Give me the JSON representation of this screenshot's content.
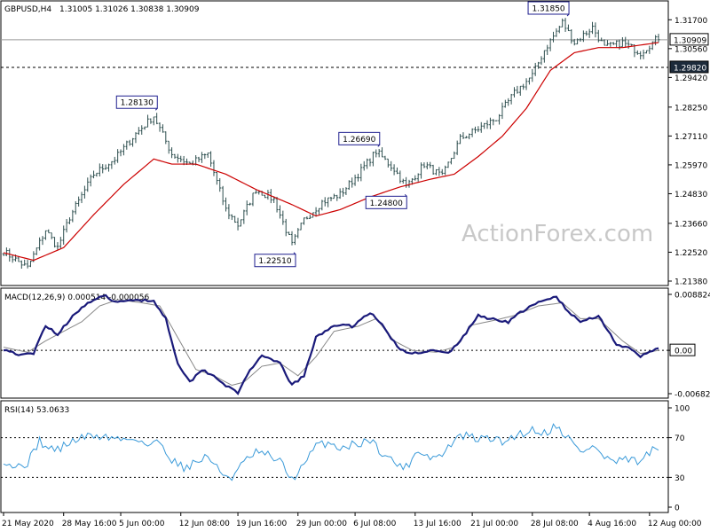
{
  "colors": {
    "background": "#ffffff",
    "candles": "#2e4f4f",
    "ma": "#cc0000",
    "macd_line": "#1a1a7a",
    "macd_signal": "#888888",
    "rsi": "#3a9ad9",
    "grid_dash": "#000000"
  },
  "header": {
    "symbol": "GBPUSD,H4",
    "ohlc": "1.31005 1.31026 1.30838 1.30909"
  },
  "watermark": "ActionForex.com",
  "chart_data": [
    {
      "type": "candlestick",
      "panel": "price",
      "ylim": [
        1.2138,
        1.3171
      ],
      "yticks": [
        "1.31700",
        "1.30560",
        "1.29420",
        "1.28250",
        "1.27110",
        "1.25970",
        "1.24830",
        "1.23660",
        "1.22520",
        "1.21380"
      ],
      "current_price_label": "1.30909",
      "current_price": 1.30909,
      "support_label": "1.29820",
      "support_level": 1.2982,
      "annotations": [
        {
          "text": "1.28130",
          "index": 50,
          "price": 1.2813
        },
        {
          "text": "1.22510",
          "index": 96,
          "price": 1.2251
        },
        {
          "text": "1.26690",
          "index": 124,
          "price": 1.2669
        },
        {
          "text": "1.24800",
          "index": 133,
          "price": 1.248
        },
        {
          "text": "1.31850",
          "index": 187,
          "price": 1.3185
        }
      ],
      "anchors": [
        [
          0,
          1.2255
        ],
        [
          8,
          1.219
        ],
        [
          14,
          1.234
        ],
        [
          18,
          1.227
        ],
        [
          22,
          1.239
        ],
        [
          30,
          1.256
        ],
        [
          37,
          1.262
        ],
        [
          44,
          1.272
        ],
        [
          50,
          1.279
        ],
        [
          56,
          1.264
        ],
        [
          62,
          1.26
        ],
        [
          68,
          1.264
        ],
        [
          74,
          1.242
        ],
        [
          78,
          1.236
        ],
        [
          84,
          1.25
        ],
        [
          90,
          1.246
        ],
        [
          96,
          1.228
        ],
        [
          100,
          1.238
        ],
        [
          106,
          1.245
        ],
        [
          112,
          1.248
        ],
        [
          118,
          1.256
        ],
        [
          124,
          1.265
        ],
        [
          130,
          1.258
        ],
        [
          134,
          1.251
        ],
        [
          140,
          1.26
        ],
        [
          146,
          1.255
        ],
        [
          152,
          1.27
        ],
        [
          158,
          1.274
        ],
        [
          164,
          1.278
        ],
        [
          170,
          1.288
        ],
        [
          176,
          1.295
        ],
        [
          180,
          1.305
        ],
        [
          186,
          1.316
        ],
        [
          190,
          1.308
        ],
        [
          196,
          1.314
        ],
        [
          200,
          1.306
        ],
        [
          206,
          1.308
        ],
        [
          212,
          1.304
        ],
        [
          218,
          1.31
        ]
      ],
      "ma_anchors": [
        [
          0,
          1.225
        ],
        [
          10,
          1.222
        ],
        [
          20,
          1.227
        ],
        [
          30,
          1.24
        ],
        [
          40,
          1.252
        ],
        [
          50,
          1.262
        ],
        [
          56,
          1.26
        ],
        [
          64,
          1.26
        ],
        [
          74,
          1.256
        ],
        [
          84,
          1.25
        ],
        [
          96,
          1.244
        ],
        [
          104,
          1.2395
        ],
        [
          112,
          1.242
        ],
        [
          122,
          1.247
        ],
        [
          132,
          1.251
        ],
        [
          142,
          1.254
        ],
        [
          150,
          1.256
        ],
        [
          158,
          1.263
        ],
        [
          166,
          1.271
        ],
        [
          174,
          1.282
        ],
        [
          182,
          1.297
        ],
        [
          190,
          1.304
        ],
        [
          198,
          1.306
        ],
        [
          206,
          1.306
        ],
        [
          212,
          1.307
        ],
        [
          218,
          1.308
        ]
      ],
      "bars": 219
    },
    {
      "type": "line",
      "panel": "macd",
      "title": "MACD(12,26,9) 0.000514 -0.000056",
      "ylim": [
        -0.006825,
        0.008824
      ],
      "yticks": [
        "0.008824",
        "0.00",
        "-0.006825"
      ],
      "current_label": "0.00",
      "series": [
        {
          "name": "MACD",
          "anchors": [
            [
              0,
              0.0002
            ],
            [
              6,
              -0.0008
            ],
            [
              10,
              -0.0005
            ],
            [
              14,
              0.004
            ],
            [
              18,
              0.0025
            ],
            [
              24,
              0.006
            ],
            [
              30,
              0.008
            ],
            [
              34,
              0.0085
            ],
            [
              38,
              0.0075
            ],
            [
              44,
              0.008
            ],
            [
              50,
              0.0078
            ],
            [
              54,
              0.005
            ],
            [
              58,
              -0.002
            ],
            [
              62,
              -0.005
            ],
            [
              66,
              -0.003
            ],
            [
              70,
              -0.004
            ],
            [
              74,
              -0.0055
            ],
            [
              78,
              -0.0068
            ],
            [
              82,
              -0.003
            ],
            [
              86,
              -0.001
            ],
            [
              92,
              -0.002
            ],
            [
              96,
              -0.0055
            ],
            [
              100,
              -0.004
            ],
            [
              104,
              0.002
            ],
            [
              110,
              0.004
            ],
            [
              116,
              0.0038
            ],
            [
              122,
              0.006
            ],
            [
              126,
              0.004
            ],
            [
              132,
              0.0
            ],
            [
              136,
              -0.0005
            ],
            [
              142,
              0.0
            ],
            [
              148,
              -0.0005
            ],
            [
              152,
              0.0015
            ],
            [
              158,
              0.0055
            ],
            [
              162,
              0.005
            ],
            [
              168,
              0.0045
            ],
            [
              172,
              0.006
            ],
            [
              178,
              0.0075
            ],
            [
              184,
              0.0085
            ],
            [
              188,
              0.006
            ],
            [
              192,
              0.0045
            ],
            [
              198,
              0.0055
            ],
            [
              204,
              0.001
            ],
            [
              208,
              0.0003
            ],
            [
              212,
              -0.001
            ],
            [
              218,
              0.0005
            ]
          ]
        },
        {
          "name": "Signal",
          "anchors": [
            [
              0,
              0.0005
            ],
            [
              8,
              -0.0003
            ],
            [
              14,
              0.0015
            ],
            [
              20,
              0.003
            ],
            [
              26,
              0.0045
            ],
            [
              32,
              0.007
            ],
            [
              38,
              0.008
            ],
            [
              46,
              0.0075
            ],
            [
              52,
              0.007
            ],
            [
              58,
              0.002
            ],
            [
              64,
              -0.003
            ],
            [
              70,
              -0.004
            ],
            [
              76,
              -0.0055
            ],
            [
              80,
              -0.005
            ],
            [
              86,
              -0.0025
            ],
            [
              92,
              -0.002
            ],
            [
              98,
              -0.004
            ],
            [
              104,
              -0.001
            ],
            [
              110,
              0.003
            ],
            [
              118,
              0.0038
            ],
            [
              124,
              0.005
            ],
            [
              130,
              0.0015
            ],
            [
              136,
              0.0
            ],
            [
              144,
              -0.0003
            ],
            [
              150,
              0.0005
            ],
            [
              156,
              0.004
            ],
            [
              164,
              0.0048
            ],
            [
              170,
              0.0055
            ],
            [
              178,
              0.007
            ],
            [
              186,
              0.0075
            ],
            [
              192,
              0.005
            ],
            [
              198,
              0.005
            ],
            [
              206,
              0.0015
            ],
            [
              212,
              -0.0005
            ],
            [
              218,
              0.0
            ]
          ]
        }
      ]
    },
    {
      "type": "line",
      "panel": "rsi",
      "title": "RSI(14) 53.0633",
      "ylim": [
        0,
        100
      ],
      "yticks": [
        "100",
        "70",
        "30",
        "0"
      ],
      "levels": [
        70,
        30
      ],
      "series": [
        {
          "name": "RSI",
          "anchors": [
            [
              0,
              48
            ],
            [
              4,
              40
            ],
            [
              8,
              45
            ],
            [
              10,
              55
            ],
            [
              12,
              68
            ],
            [
              14,
              60
            ],
            [
              18,
              58
            ],
            [
              22,
              65
            ],
            [
              26,
              70
            ],
            [
              30,
              72
            ],
            [
              36,
              70
            ],
            [
              40,
              68
            ],
            [
              44,
              70
            ],
            [
              48,
              62
            ],
            [
              52,
              66
            ],
            [
              56,
              48
            ],
            [
              60,
              40
            ],
            [
              64,
              45
            ],
            [
              68,
              52
            ],
            [
              72,
              35
            ],
            [
              76,
              30
            ],
            [
              80,
              45
            ],
            [
              84,
              55
            ],
            [
              88,
              52
            ],
            [
              92,
              46
            ],
            [
              96,
              28
            ],
            [
              100,
              42
            ],
            [
              104,
              62
            ],
            [
              108,
              65
            ],
            [
              112,
              60
            ],
            [
              118,
              64
            ],
            [
              122,
              68
            ],
            [
              126,
              55
            ],
            [
              130,
              45
            ],
            [
              134,
              40
            ],
            [
              138,
              58
            ],
            [
              142,
              50
            ],
            [
              146,
              52
            ],
            [
              150,
              68
            ],
            [
              154,
              72
            ],
            [
              158,
              68
            ],
            [
              162,
              70
            ],
            [
              166,
              65
            ],
            [
              170,
              72
            ],
            [
              176,
              78
            ],
            [
              180,
              75
            ],
            [
              184,
              82
            ],
            [
              188,
              70
            ],
            [
              192,
              55
            ],
            [
              196,
              62
            ],
            [
              200,
              50
            ],
            [
              204,
              45
            ],
            [
              208,
              48
            ],
            [
              212,
              45
            ],
            [
              216,
              58
            ],
            [
              218,
              53
            ]
          ]
        }
      ]
    }
  ],
  "time_axis": {
    "labels": [
      "21 May 2020",
      "28 May 16:00",
      "5 Jun 00:00",
      "12 Jun 08:00",
      "19 Jun 16:00",
      "29 Jun 00:00",
      "6 Jul 08:00",
      "13 Jul 16:00",
      "21 Jul 00:00",
      "28 Jul 08:00",
      "4 Aug 16:00",
      "12 Aug 00:00"
    ]
  }
}
